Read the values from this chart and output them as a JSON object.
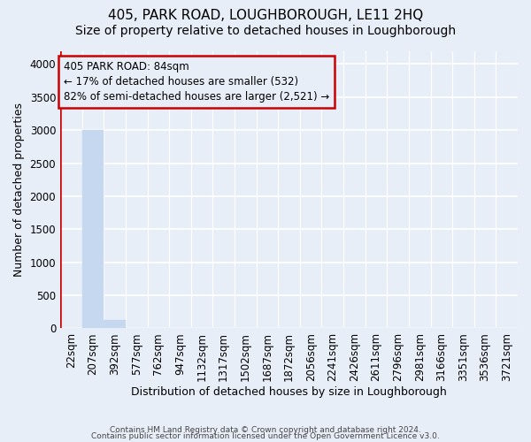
{
  "title": "405, PARK ROAD, LOUGHBOROUGH, LE11 2HQ",
  "subtitle": "Size of property relative to detached houses in Loughborough",
  "xlabel": "Distribution of detached houses by size in Loughborough",
  "ylabel": "Number of detached properties",
  "footer_line1": "Contains HM Land Registry data © Crown copyright and database right 2024.",
  "footer_line2": "Contains public sector information licensed under the Open Government Licence v3.0.",
  "bin_labels": [
    "22sqm",
    "207sqm",
    "392sqm",
    "577sqm",
    "762sqm",
    "947sqm",
    "1132sqm",
    "1317sqm",
    "1502sqm",
    "1687sqm",
    "1872sqm",
    "2056sqm",
    "2241sqm",
    "2426sqm",
    "2611sqm",
    "2796sqm",
    "2981sqm",
    "3166sqm",
    "3351sqm",
    "3536sqm",
    "3721sqm"
  ],
  "bar_values": [
    5,
    3000,
    130,
    0,
    0,
    0,
    0,
    0,
    0,
    0,
    0,
    0,
    0,
    0,
    0,
    0,
    0,
    0,
    0,
    0,
    0
  ],
  "bar_color": "#c5d8f0",
  "bar_edge_color": "#c5d8f0",
  "ylim": [
    0,
    4200
  ],
  "yticks": [
    0,
    500,
    1000,
    1500,
    2000,
    2500,
    3000,
    3500,
    4000
  ],
  "property_line_color": "#cc0000",
  "annotation_text": "405 PARK ROAD: 84sqm\n← 17% of detached houses are smaller (532)\n82% of semi-detached houses are larger (2,521) →",
  "annotation_box_color": "#cc0000",
  "background_color": "#e8eef8",
  "grid_color": "#ffffff",
  "title_fontsize": 11,
  "subtitle_fontsize": 10,
  "axis_label_fontsize": 9,
  "tick_fontsize": 8.5
}
